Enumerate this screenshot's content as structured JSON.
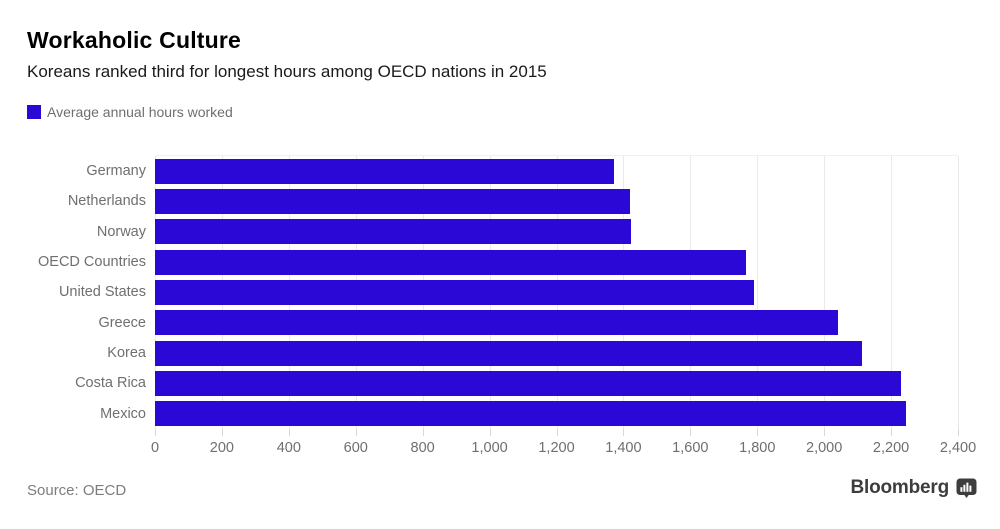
{
  "header": {
    "title": "Workaholic Culture",
    "subtitle": "Koreans ranked third for longest hours among OECD nations in 2015"
  },
  "legend": {
    "label": "Average annual hours worked",
    "swatch_color": "#2b08d6"
  },
  "chart_data": {
    "type": "bar",
    "orientation": "horizontal",
    "title": "Workaholic Culture",
    "subtitle": "Koreans ranked third for longest hours among OECD nations in 2015",
    "series_name": "Average annual hours worked",
    "categories": [
      "Germany",
      "Netherlands",
      "Norway",
      "OECD Countries",
      "United States",
      "Greece",
      "Korea",
      "Costa Rica",
      "Mexico"
    ],
    "values": [
      1371,
      1419,
      1424,
      1766,
      1790,
      2042,
      2113,
      2230,
      2246
    ],
    "xlabel": "",
    "ylabel": "",
    "xlim": [
      0,
      2400
    ],
    "x_tick_step": 200,
    "x_tick_labels": [
      "0",
      "200",
      "400",
      "600",
      "800",
      "1,000",
      "1,200",
      "1,400",
      "1,600",
      "1,800",
      "2,000",
      "2,200",
      "2,400"
    ],
    "grid": true,
    "gridline_color": "#eaeaea",
    "bar_color": "#2b08d6",
    "legend_position": "top-left"
  },
  "footer": {
    "source": "Source: OECD",
    "brand": "Bloomberg",
    "brand_icon": "bloomberg-terminal-icon"
  }
}
